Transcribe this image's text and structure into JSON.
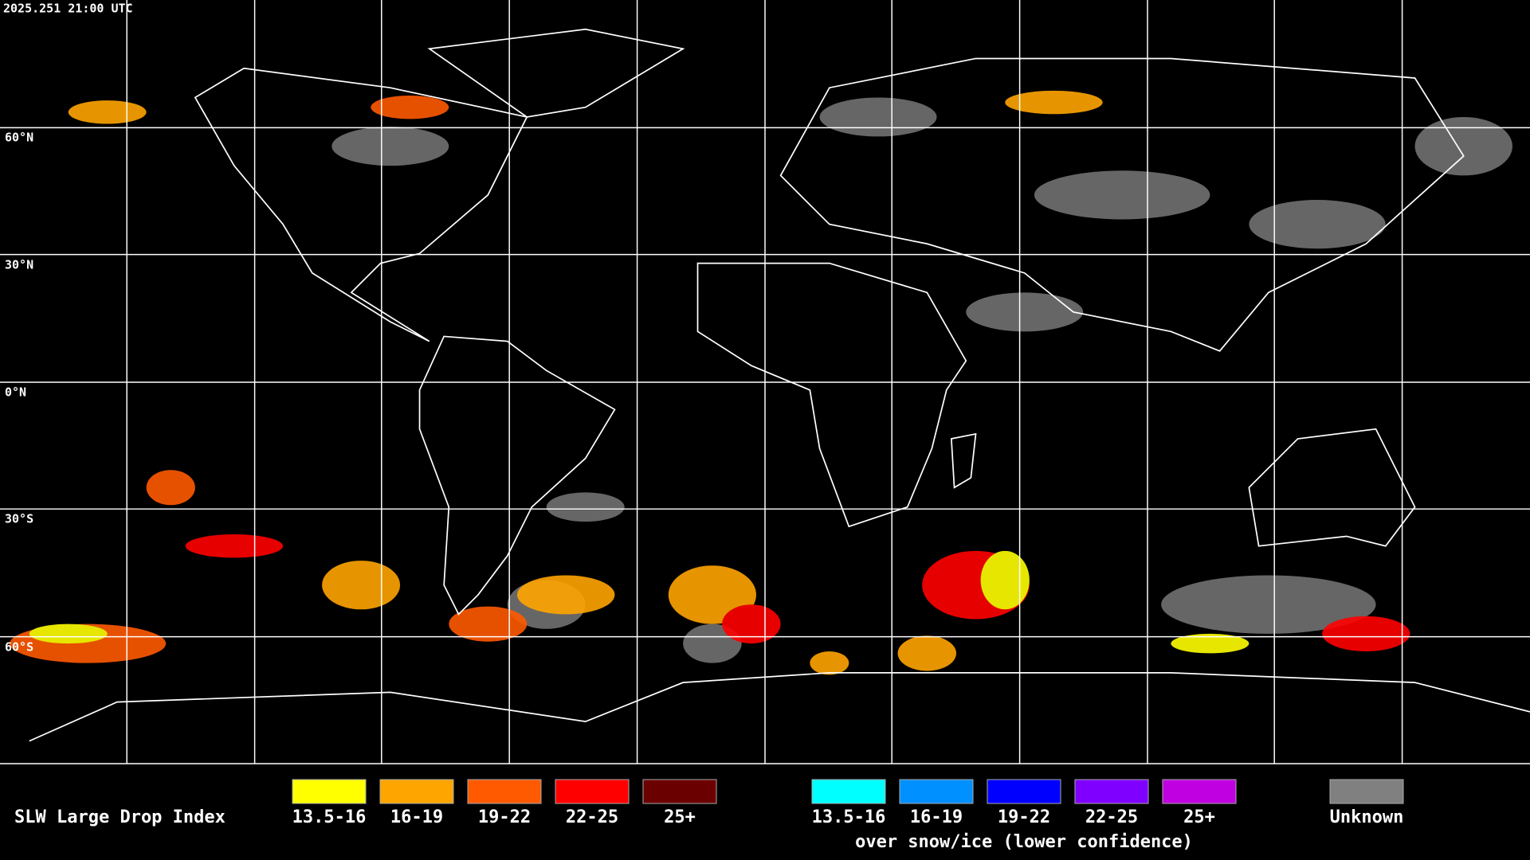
{
  "timestamp": "2025.251 21:00 UTC",
  "lat_labels": [
    "60°N",
    "30°N",
    "0°N",
    "30°S",
    "60°S"
  ],
  "legend": {
    "title": "SLW Large Drop Index",
    "groups": [
      {
        "items": [
          {
            "label": "13.5-16",
            "color": "#ffff00"
          },
          {
            "label": "16-19",
            "color": "#ffa500"
          },
          {
            "label": "19-22",
            "color": "#ff5a00"
          },
          {
            "label": "22-25",
            "color": "#ff0000"
          },
          {
            "label": "25+",
            "color": "#6b0000"
          }
        ]
      },
      {
        "items": [
          {
            "label": "13.5-16",
            "color": "#00ffff"
          },
          {
            "label": "16-19",
            "color": "#0090ff"
          },
          {
            "label": "19-22",
            "color": "#0000ff"
          },
          {
            "label": "22-25",
            "color": "#8000ff"
          },
          {
            "label": "25+",
            "color": "#c000e0"
          }
        ],
        "note": "over snow/ice (lower confidence)"
      }
    ],
    "unknown": {
      "label": "Unknown",
      "color": "#808080"
    }
  }
}
